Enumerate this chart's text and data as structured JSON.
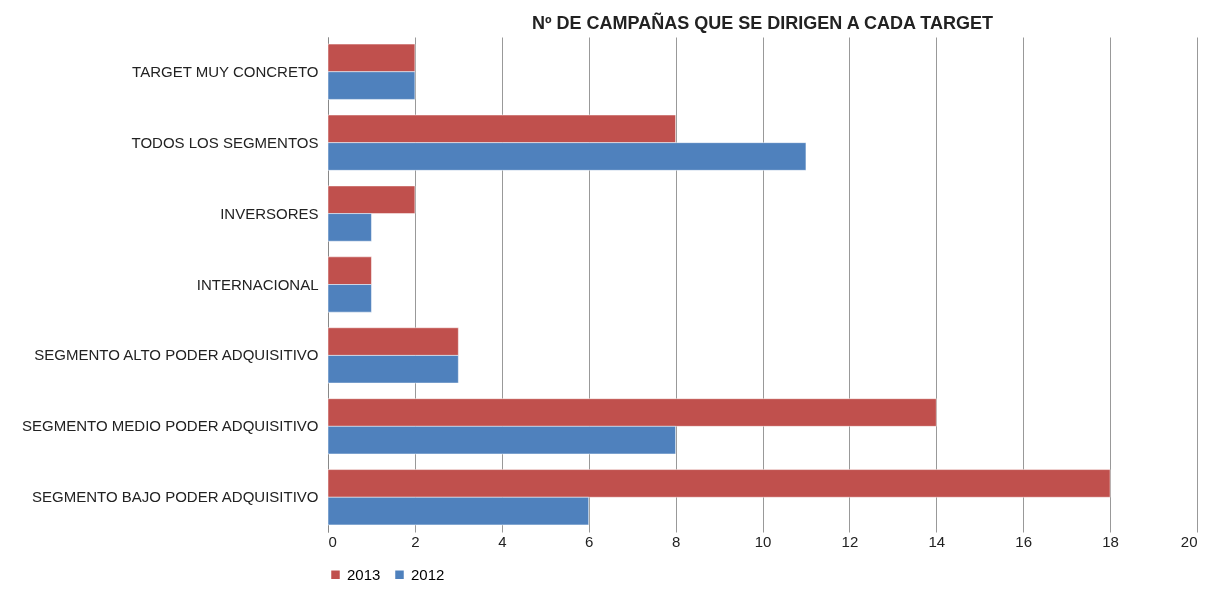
{
  "chart_data": {
    "type": "bar",
    "orientation": "horizontal",
    "title": "Nº DE CAMPAÑAS QUE  SE DIRIGEN A CADA TARGET",
    "categories": [
      "TARGET MUY CONCRETO",
      "TODOS LOS SEGMENTOS",
      "INVERSORES",
      "INTERNACIONAL",
      "SEGMENTO ALTO PODER ADQUISITIVO",
      "SEGMENTO MEDIO PODER ADQUISITIVO",
      "SEGMENTO BAJO PODER ADQUISITIVO"
    ],
    "series": [
      {
        "name": "2013",
        "color": "#c0504d",
        "values": [
          2,
          8,
          2,
          1,
          3,
          14,
          18
        ]
      },
      {
        "name": "2012",
        "color": "#4f81bd",
        "values": [
          2,
          11,
          1,
          1,
          3,
          8,
          6
        ]
      }
    ],
    "xlim": [
      0,
      20
    ],
    "xticks": [
      0,
      2,
      4,
      6,
      8,
      10,
      12,
      14,
      16,
      18,
      20
    ],
    "grid": "x",
    "legend": "bottom"
  }
}
